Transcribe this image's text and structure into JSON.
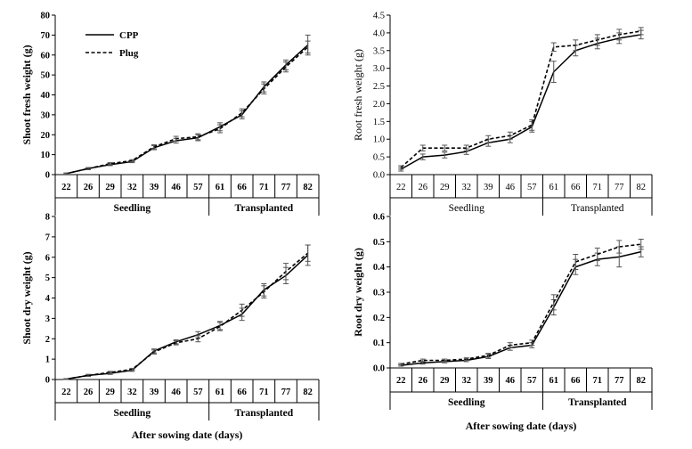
{
  "chart_data": [
    {
      "type": "line",
      "panel": "top-left",
      "ylabel": "Shoot fresh weight (g)",
      "ylim": [
        0,
        80
      ],
      "ystep": 10,
      "ytick_decimals": 0,
      "categories": [
        "22",
        "26",
        "29",
        "32",
        "39",
        "46",
        "57",
        "61",
        "66",
        "71",
        "77",
        "82"
      ],
      "groups": [
        "Seedling",
        "Transplanted"
      ],
      "xlabel": "",
      "legend": "top-left",
      "bold_text": true,
      "series": [
        {
          "name": "CPP",
          "style": "solid",
          "values": [
            0.5,
            3,
            5,
            6.5,
            13.5,
            17,
            18.5,
            24,
            30,
            44,
            55,
            65
          ],
          "errors": [
            0.3,
            0.5,
            0.5,
            0.5,
            1,
            1.2,
            1.5,
            2,
            2,
            2.5,
            2.5,
            5
          ]
        },
        {
          "name": "Plug",
          "style": "dashed",
          "values": [
            0.5,
            3,
            5.5,
            7,
            14,
            18,
            19,
            23,
            31,
            43,
            54,
            64
          ],
          "errors": [
            0.3,
            0.5,
            0.5,
            0.5,
            1,
            1.2,
            1.5,
            2,
            2,
            2.5,
            2.5,
            3
          ]
        }
      ]
    },
    {
      "type": "line",
      "panel": "top-right",
      "ylabel": "Root fresh weight (g)",
      "ylim": [
        0,
        4.5
      ],
      "ystep": 0.5,
      "ytick_decimals": 1,
      "categories": [
        "22",
        "26",
        "29",
        "32",
        "39",
        "46",
        "57",
        "61",
        "66",
        "71",
        "77",
        "82"
      ],
      "groups": [
        "Seedling",
        "Transplanted"
      ],
      "xlabel": "",
      "bold_text": false,
      "series": [
        {
          "style": "solid",
          "values": [
            0.15,
            0.5,
            0.55,
            0.65,
            0.9,
            1.0,
            1.35,
            2.9,
            3.5,
            3.7,
            3.85,
            3.95
          ],
          "errors": [
            0.05,
            0.08,
            0.08,
            0.08,
            0.1,
            0.1,
            0.15,
            0.3,
            0.15,
            0.15,
            0.15,
            0.12
          ]
        },
        {
          "style": "dashed",
          "values": [
            0.2,
            0.75,
            0.75,
            0.75,
            1.0,
            1.1,
            1.4,
            3.6,
            3.65,
            3.8,
            3.95,
            4.05
          ],
          "errors": [
            0.05,
            0.08,
            0.08,
            0.08,
            0.1,
            0.1,
            0.15,
            0.12,
            0.15,
            0.15,
            0.15,
            0.1
          ]
        }
      ]
    },
    {
      "type": "line",
      "panel": "bottom-left",
      "ylabel": "Shoot dry weight (g)",
      "ylim": [
        0,
        8
      ],
      "ystep": 1,
      "ytick_decimals": 0,
      "categories": [
        "22",
        "26",
        "29",
        "32",
        "39",
        "46",
        "57",
        "61",
        "66",
        "71",
        "77",
        "82"
      ],
      "groups": [
        "Seedling",
        "Transplanted"
      ],
      "xlabel": "After sowing date (days)",
      "bold_text": true,
      "series": [
        {
          "style": "solid",
          "values": [
            0.02,
            0.2,
            0.3,
            0.45,
            1.4,
            1.85,
            2.2,
            2.65,
            3.2,
            4.4,
            5.1,
            6.1
          ],
          "errors": [
            0.02,
            0.05,
            0.05,
            0.05,
            0.1,
            0.1,
            0.15,
            0.2,
            0.3,
            0.3,
            0.4,
            0.5
          ]
        },
        {
          "style": "dashed",
          "values": [
            0.02,
            0.2,
            0.35,
            0.5,
            1.35,
            1.8,
            2.0,
            2.6,
            3.4,
            4.3,
            5.3,
            6.2
          ],
          "errors": [
            0.02,
            0.05,
            0.05,
            0.05,
            0.1,
            0.1,
            0.15,
            0.2,
            0.3,
            0.3,
            0.4,
            0.4
          ]
        }
      ]
    },
    {
      "type": "line",
      "panel": "bottom-right",
      "ylabel": "Root dry weight (g)",
      "ylim": [
        0,
        0.6
      ],
      "ystep": 0.1,
      "ytick_decimals": 1,
      "categories": [
        "22",
        "26",
        "29",
        "32",
        "39",
        "46",
        "57",
        "61",
        "66",
        "71",
        "77",
        "82"
      ],
      "groups": [
        "Seedling",
        "Transplanted"
      ],
      "xlabel": "After sowing date (days)",
      "bold_text": true,
      "series": [
        {
          "style": "solid",
          "values": [
            0.01,
            0.02,
            0.025,
            0.03,
            0.045,
            0.08,
            0.09,
            0.24,
            0.4,
            0.43,
            0.44,
            0.46
          ],
          "errors": [
            0.003,
            0.005,
            0.005,
            0.005,
            0.008,
            0.01,
            0.01,
            0.03,
            0.03,
            0.025,
            0.04,
            0.02
          ]
        },
        {
          "style": "dashed",
          "values": [
            0.015,
            0.03,
            0.03,
            0.035,
            0.05,
            0.09,
            0.1,
            0.26,
            0.42,
            0.45,
            0.48,
            0.49
          ],
          "errors": [
            0.003,
            0.005,
            0.005,
            0.005,
            0.008,
            0.01,
            0.01,
            0.03,
            0.03,
            0.025,
            0.025,
            0.02
          ]
        }
      ]
    }
  ]
}
